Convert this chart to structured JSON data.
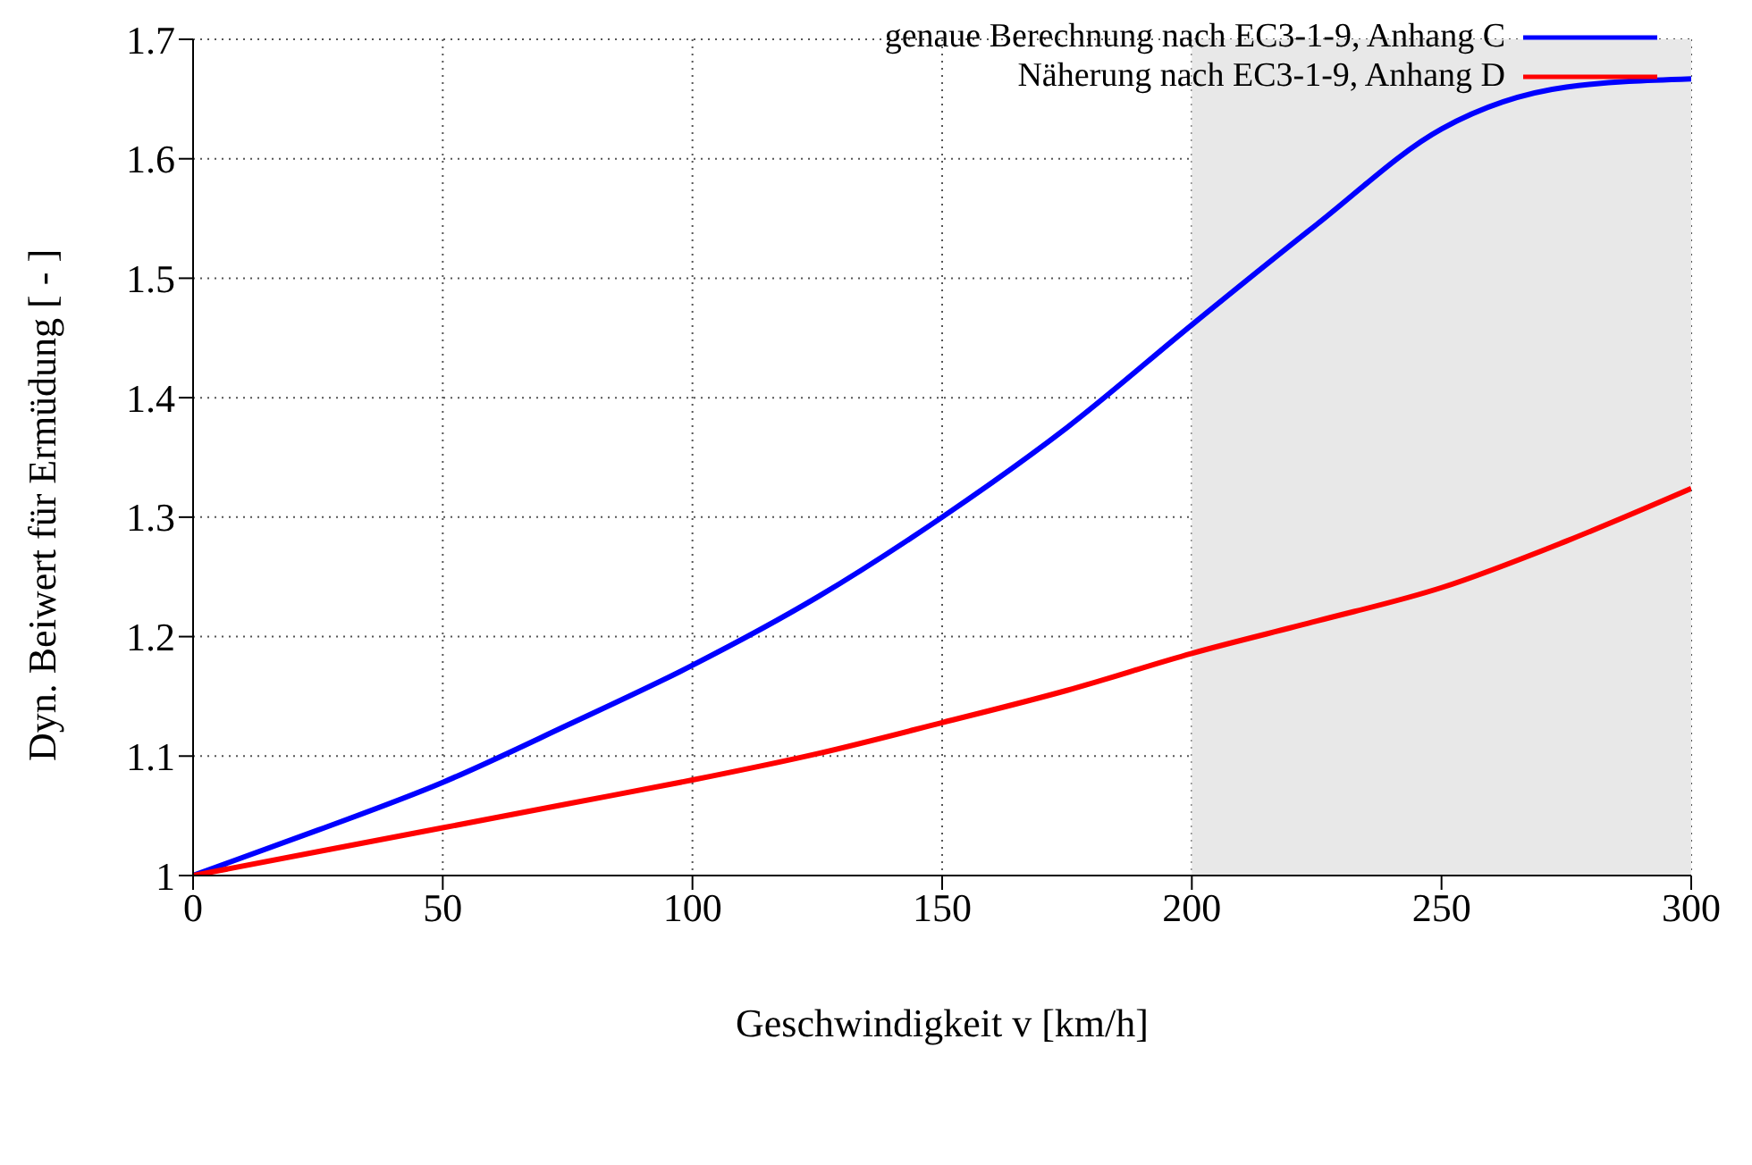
{
  "chart_data": {
    "type": "line",
    "xlabel": "Geschwindigkeit v [km/h]",
    "ylabel": "Dyn. Beiwert für Ermüdung [ - ]",
    "x": [
      0,
      25,
      50,
      75,
      100,
      125,
      150,
      175,
      200,
      225,
      250,
      275,
      300
    ],
    "series": [
      {
        "name": "genaue Berechnung nach EC3-1-9, Anhang C",
        "color": "#0000ff",
        "values": [
          1.0,
          1.038,
          1.078,
          1.126,
          1.176,
          1.233,
          1.3,
          1.375,
          1.461,
          1.545,
          1.625,
          1.66,
          1.667
        ]
      },
      {
        "name": "Näherung nach EC3-1-9, Anhang D",
        "color": "#ff0000",
        "values": [
          1.0,
          1.02,
          1.04,
          1.06,
          1.08,
          1.102,
          1.128,
          1.155,
          1.186,
          1.213,
          1.241,
          1.28,
          1.324
        ]
      }
    ],
    "xlim": [
      0,
      300
    ],
    "xticks": [
      0,
      50,
      100,
      150,
      200,
      250,
      300
    ],
    "ylim": [
      1,
      1.7
    ],
    "yticks": [
      1,
      1.1,
      1.2,
      1.3,
      1.4,
      1.5,
      1.6,
      1.7
    ],
    "grid": true,
    "legend": "top right",
    "marker": "none",
    "line_style": "solid",
    "bands": [
      {
        "axis": "x",
        "from": 200,
        "to": 300,
        "color": "#e8e8e8"
      }
    ]
  }
}
